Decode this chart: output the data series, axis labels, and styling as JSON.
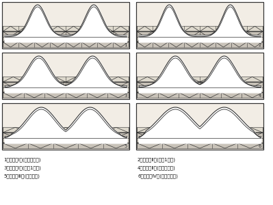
{
  "bg": "#ffffff",
  "lc": "#333333",
  "stripe_light": "#e8e4dc",
  "stripe_dark": "#d0c8bc",
  "panel_bg": "#f0ece4",
  "labels_left": [
    "1．等角系Ⅰ式(大塚越古墳)",
    "3．鈍角系Ⅰ式(堂山1号墳)",
    "5．鈍角系Ⅲ式(鞍塚古墳)"
  ],
  "labels_right": [
    "2．等角系Ⅱ式(向山1号墳)",
    "4．鈍角系Ⅱ式(長溝西古墳)",
    "6．鈍角系Ⅳ式(ニゴレ古墳)"
  ]
}
